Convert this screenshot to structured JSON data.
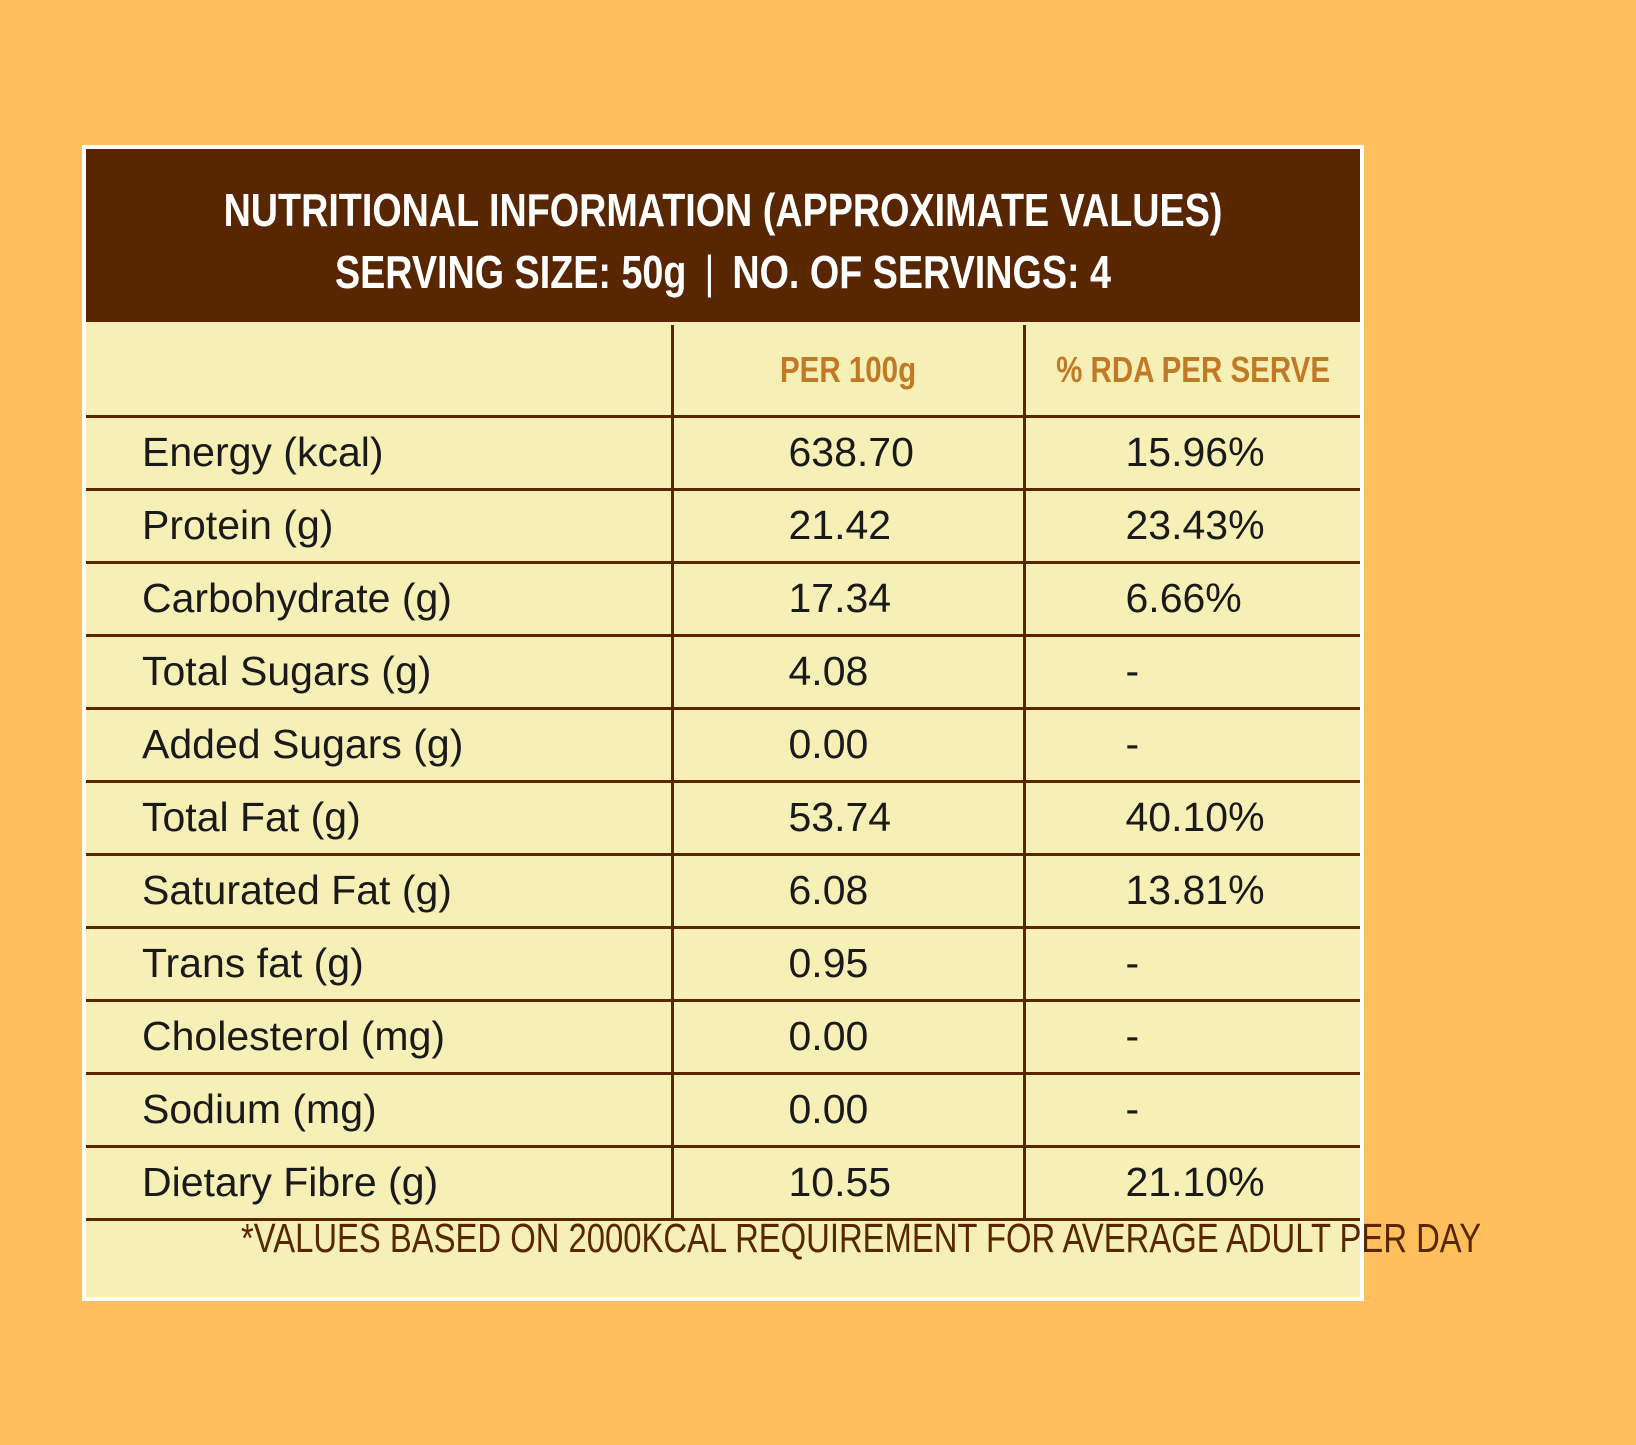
{
  "header": {
    "title": "NUTRITIONAL INFORMATION (APPROXIMATE VALUES)",
    "serving_size": "SERVING SIZE: 50g",
    "separator": "|",
    "servings": "NO. OF SERVINGS: 4"
  },
  "table": {
    "columns": [
      "",
      "PER 100g",
      "% RDA PER SERVE"
    ],
    "rows": [
      {
        "name": "Energy (kcal)",
        "per100": "638.70",
        "rda": "15.96%"
      },
      {
        "name": "Protein (g)",
        "per100": "21.42",
        "rda": "23.43%"
      },
      {
        "name": "Carbohydrate (g)",
        "per100": "17.34",
        "rda": "6.66%"
      },
      {
        "name": "Total Sugars (g)",
        "per100": "4.08",
        "rda": "-"
      },
      {
        "name": "Added Sugars (g)",
        "per100": "0.00",
        "rda": "-"
      },
      {
        "name": "Total Fat (g)",
        "per100": "53.74",
        "rda": "40.10%"
      },
      {
        "name": "Saturated Fat (g)",
        "per100": "6.08",
        "rda": "13.81%"
      },
      {
        "name": "Trans fat (g)",
        "per100": "0.95",
        "rda": "-"
      },
      {
        "name": "Cholesterol (mg)",
        "per100": "0.00",
        "rda": "-"
      },
      {
        "name": "Sodium (mg)",
        "per100": "0.00",
        "rda": "-"
      },
      {
        "name": "Dietary Fibre (g)",
        "per100": "10.55",
        "rda": "21.10%"
      }
    ]
  },
  "footnote": "*VALUES BASED ON 2000KCAL REQUIREMENT FOR AVERAGE ADULT PER DAY",
  "colors": {
    "background": "#FEBF5C",
    "header_bg": "#582601",
    "table_bg": "#F7F0B6",
    "column_header_text": "#C07A25",
    "border": "#582601"
  }
}
